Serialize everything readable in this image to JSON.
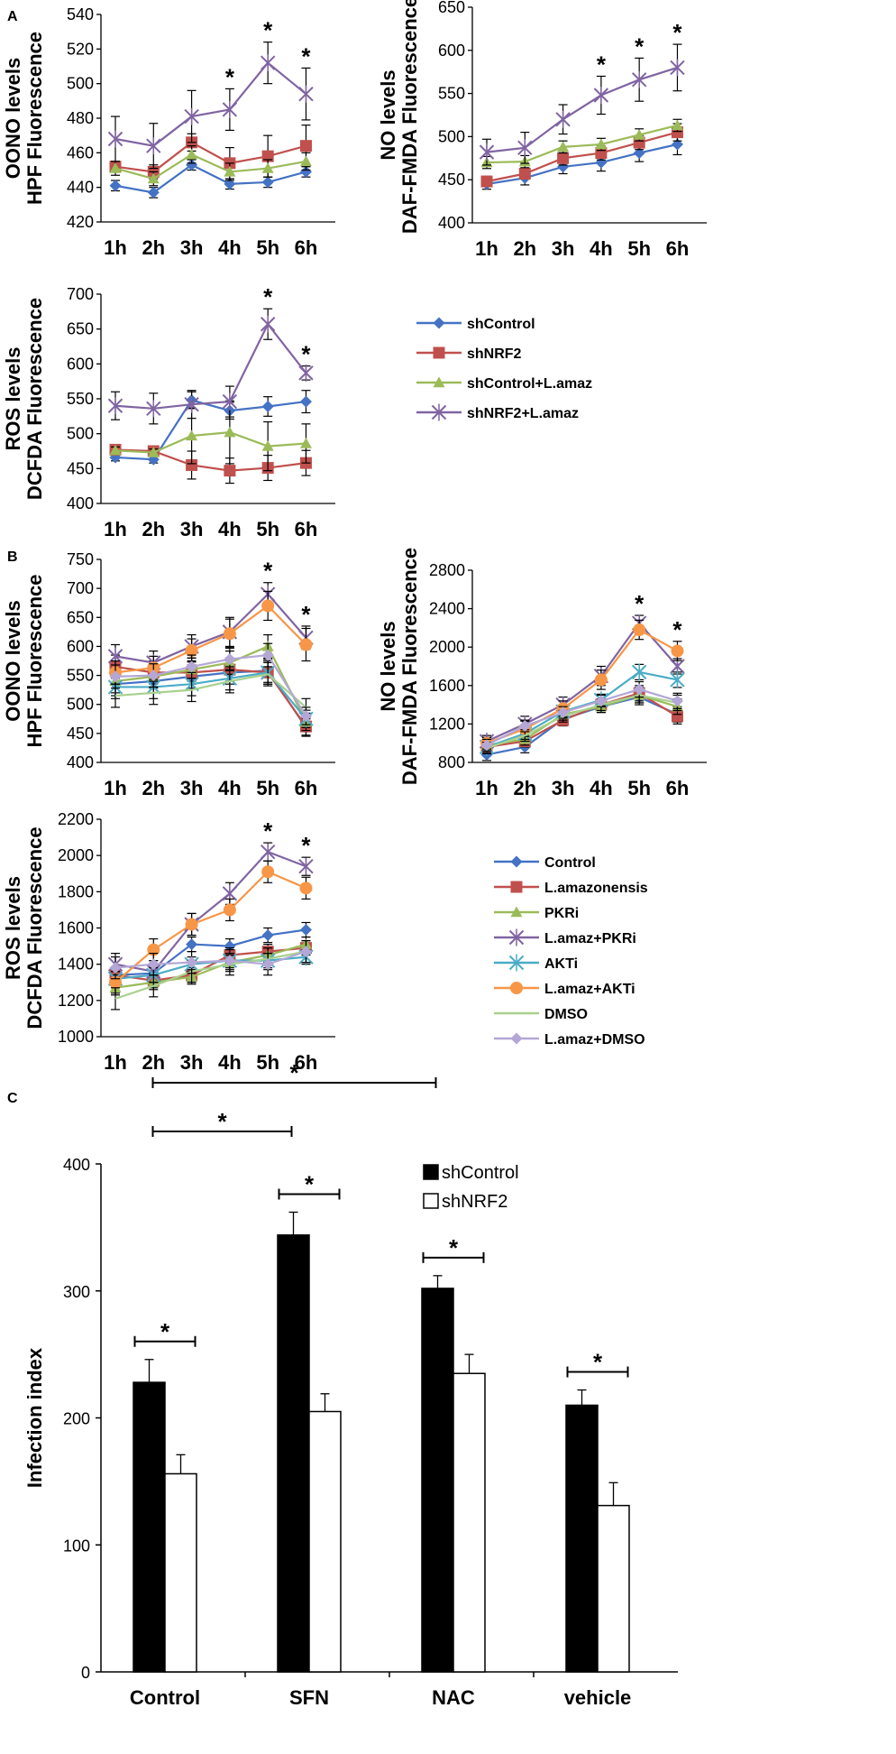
{
  "panels": [
    "A",
    "B",
    "C"
  ],
  "legend_a": [
    {
      "name": "shControl",
      "color": "#4472C4",
      "marker": "diamond"
    },
    {
      "name": "shNRF2",
      "color": "#C0504D",
      "marker": "square"
    },
    {
      "name": "shControl+L.amaz",
      "color": "#9BBB59",
      "marker": "triangle"
    },
    {
      "name": "shNRF2+L.amaz",
      "color": "#8064A2",
      "marker": "x"
    }
  ],
  "legend_b": [
    {
      "name": "Control",
      "color": "#4472C4",
      "marker": "diamond"
    },
    {
      "name": "L.amazonensis",
      "color": "#C0504D",
      "marker": "square"
    },
    {
      "name": "PKRi",
      "color": "#9BBB59",
      "marker": "triangle"
    },
    {
      "name": "L.amaz+PKRi",
      "color": "#8064A2",
      "marker": "x"
    },
    {
      "name": "AKTi",
      "color": "#4BACC6",
      "marker": "x"
    },
    {
      "name": "L.amaz+AKTi",
      "color": "#F79646",
      "marker": "circle"
    },
    {
      "name": "DMSO",
      "color": "#A9D18E",
      "marker": "none"
    },
    {
      "name": "L.amaz+DMSO",
      "color": "#B4A7D6",
      "marker": "diamond"
    }
  ],
  "legend_c": [
    {
      "name": "shControl",
      "fill": "#000000"
    },
    {
      "name": "shNRF2",
      "fill": "#ffffff"
    }
  ],
  "chart_data": [
    {
      "id": "A1",
      "panel": "A",
      "type": "line",
      "ylabel_lines": [
        "OONO levels",
        "HPF Fluorescence"
      ],
      "categories": [
        "1h",
        "2h",
        "3h",
        "4h",
        "5h",
        "6h"
      ],
      "ylim": [
        420,
        540
      ],
      "yticks": [
        420,
        440,
        460,
        480,
        500,
        520,
        540
      ],
      "series": [
        {
          "name": "shControl",
          "values": [
            441,
            437,
            453,
            442,
            443,
            449
          ],
          "err": [
            3,
            3,
            3,
            3,
            3,
            3
          ]
        },
        {
          "name": "shNRF2",
          "values": [
            452,
            449,
            466,
            454,
            458,
            464
          ],
          "err": [
            3,
            4,
            5,
            9,
            12,
            12
          ]
        },
        {
          "name": "shControl+L.amaz",
          "values": [
            451,
            445,
            459,
            449,
            451,
            455
          ],
          "err": [
            4,
            4,
            5,
            5,
            5,
            5
          ]
        },
        {
          "name": "shNRF2+L.amaz",
          "values": [
            468,
            464,
            481,
            485,
            512,
            494
          ],
          "err": [
            13,
            13,
            15,
            12,
            12,
            15
          ]
        }
      ],
      "stars": [
        "",
        "",
        "",
        "*",
        "*",
        "*"
      ]
    },
    {
      "id": "A2",
      "panel": "A",
      "type": "line",
      "ylabel_lines": [
        "NO levels",
        "DAF-FMDA Fluorescence"
      ],
      "categories": [
        "1h",
        "2h",
        "3h",
        "4h",
        "5h",
        "6h"
      ],
      "ylim": [
        400,
        650
      ],
      "yticks": [
        400,
        450,
        500,
        550,
        600,
        650
      ],
      "series": [
        {
          "name": "shControl",
          "values": [
            445,
            452,
            465,
            470,
            481,
            491
          ],
          "err": [
            6,
            8,
            8,
            10,
            10,
            12
          ]
        },
        {
          "name": "shNRF2",
          "values": [
            448,
            457,
            475,
            481,
            493,
            505
          ],
          "err": [
            6,
            6,
            8,
            8,
            8,
            10
          ]
        },
        {
          "name": "shControl+L.amaz",
          "values": [
            470,
            471,
            488,
            491,
            502,
            513
          ],
          "err": [
            7,
            7,
            7,
            7,
            7,
            7
          ]
        },
        {
          "name": "shNRF2+L.amaz",
          "values": [
            482,
            487,
            520,
            548,
            566,
            580
          ],
          "err": [
            15,
            18,
            17,
            22,
            25,
            27
          ]
        }
      ],
      "stars": [
        "",
        "",
        "",
        "*",
        "*",
        "*"
      ]
    },
    {
      "id": "A3",
      "panel": "A",
      "type": "line",
      "ylabel_lines": [
        "ROS levels",
        "DCFDA Fluorescence"
      ],
      "categories": [
        "1h",
        "2h",
        "3h",
        "4h",
        "5h",
        "6h"
      ],
      "ylim": [
        400,
        700
      ],
      "yticks": [
        400,
        450,
        500,
        550,
        600,
        650,
        700
      ],
      "series": [
        {
          "name": "shControl",
          "values": [
            466,
            463,
            548,
            533,
            539,
            546
          ],
          "err": [
            5,
            5,
            12,
            12,
            14,
            16
          ]
        },
        {
          "name": "shNRF2",
          "values": [
            477,
            475,
            455,
            447,
            451,
            458
          ],
          "err": [
            5,
            5,
            20,
            18,
            18,
            18
          ]
        },
        {
          "name": "shControl+L.amaz",
          "values": [
            476,
            473,
            497,
            502,
            482,
            486
          ],
          "err": [
            5,
            5,
            40,
            45,
            35,
            28
          ]
        },
        {
          "name": "shNRF2+L.amaz",
          "values": [
            540,
            536,
            542,
            546,
            657,
            587
          ],
          "err": [
            20,
            22,
            20,
            22,
            22,
            10
          ]
        }
      ],
      "stars": [
        "",
        "",
        "",
        "",
        "*",
        "*"
      ]
    },
    {
      "id": "B1",
      "panel": "B",
      "type": "line",
      "ylabel_lines": [
        "OONO levels",
        "HPF Fluorescence"
      ],
      "categories": [
        "1h",
        "2h",
        "3h",
        "4h",
        "5h",
        "6h"
      ],
      "ylim": [
        400,
        750
      ],
      "yticks": [
        400,
        450,
        500,
        550,
        600,
        650,
        700,
        750
      ],
      "series": [
        {
          "name": "Control",
          "values": [
            535,
            540,
            548,
            555,
            558,
            460
          ],
          "err": [
            20,
            20,
            20,
            20,
            20,
            15
          ]
        },
        {
          "name": "L.amazonensis",
          "values": [
            565,
            555,
            555,
            560,
            555,
            462
          ],
          "err": [
            20,
            20,
            20,
            20,
            20,
            15
          ]
        },
        {
          "name": "PKRi",
          "values": [
            540,
            548,
            560,
            572,
            600,
            470
          ],
          "err": [
            20,
            20,
            20,
            20,
            20,
            15
          ]
        },
        {
          "name": "L.amaz+PKRi",
          "values": [
            583,
            572,
            600,
            625,
            690,
            615
          ],
          "err": [
            20,
            20,
            20,
            25,
            20,
            20
          ]
        },
        {
          "name": "AKTi",
          "values": [
            530,
            530,
            535,
            545,
            555,
            475
          ],
          "err": [
            20,
            20,
            20,
            20,
            20,
            15
          ]
        },
        {
          "name": "L.amaz+AKTi",
          "values": [
            555,
            563,
            593,
            622,
            670,
            603
          ],
          "err": [
            20,
            20,
            20,
            25,
            25,
            28
          ]
        },
        {
          "name": "DMSO",
          "values": [
            515,
            520,
            525,
            540,
            552,
            495
          ],
          "err": [
            20,
            20,
            20,
            20,
            20,
            15
          ]
        },
        {
          "name": "L.amaz+DMSO",
          "values": [
            548,
            550,
            565,
            578,
            585,
            480
          ],
          "err": [
            20,
            20,
            20,
            20,
            20,
            15
          ]
        }
      ],
      "stars": [
        "",
        "",
        "",
        "",
        "*",
        "*"
      ]
    },
    {
      "id": "B2",
      "panel": "B",
      "type": "line",
      "ylabel_lines": [
        "NO levels",
        "DAF-FMDA Fluorescence"
      ],
      "categories": [
        "1h",
        "2h",
        "3h",
        "4h",
        "5h",
        "6h"
      ],
      "ylim": [
        800,
        2800
      ],
      "yticks": [
        800,
        1200,
        1600,
        2000,
        2400,
        2800
      ],
      "series": [
        {
          "name": "Control",
          "values": [
            880,
            960,
            1250,
            1380,
            1480,
            1300
          ],
          "err": [
            60,
            60,
            60,
            60,
            80,
            80
          ]
        },
        {
          "name": "L.amazonensis",
          "values": [
            960,
            1020,
            1240,
            1400,
            1520,
            1280
          ],
          "err": [
            60,
            60,
            60,
            60,
            80,
            80
          ]
        },
        {
          "name": "PKRi",
          "values": [
            980,
            1040,
            1300,
            1380,
            1500,
            1380
          ],
          "err": [
            60,
            60,
            60,
            60,
            80,
            80
          ]
        },
        {
          "name": "L.amaz+PKRi",
          "values": [
            1020,
            1200,
            1400,
            1700,
            2250,
            1800
          ],
          "err": [
            60,
            80,
            80,
            100,
            80,
            80
          ]
        },
        {
          "name": "AKTi",
          "values": [
            960,
            1100,
            1330,
            1450,
            1740,
            1660
          ],
          "err": [
            60,
            60,
            60,
            60,
            80,
            80
          ]
        },
        {
          "name": "L.amaz+AKTi",
          "values": [
            1000,
            1150,
            1360,
            1660,
            2180,
            1960
          ],
          "err": [
            60,
            80,
            80,
            100,
            100,
            100
          ]
        },
        {
          "name": "DMSO",
          "values": [
            950,
            1080,
            1280,
            1400,
            1500,
            1420
          ],
          "err": [
            60,
            60,
            60,
            60,
            80,
            80
          ]
        },
        {
          "name": "L.amaz+DMSO",
          "values": [
            980,
            1180,
            1320,
            1440,
            1560,
            1440
          ],
          "err": [
            60,
            60,
            60,
            60,
            80,
            80
          ]
        }
      ],
      "stars": [
        "",
        "",
        "",
        "",
        "*",
        "*"
      ]
    },
    {
      "id": "B3",
      "panel": "B",
      "type": "line",
      "ylabel_lines": [
        "ROS levels",
        "DCFDA Fluorescence"
      ],
      "categories": [
        "1h",
        "2h",
        "3h",
        "4h",
        "5h",
        "6h"
      ],
      "ylim": [
        1000,
        2200
      ],
      "yticks": [
        1000,
        1200,
        1400,
        1600,
        1800,
        2000,
        2200
      ],
      "series": [
        {
          "name": "Control",
          "values": [
            1340,
            1350,
            1510,
            1500,
            1560,
            1590
          ],
          "err": [
            40,
            40,
            40,
            40,
            40,
            40
          ]
        },
        {
          "name": "L.amazonensis",
          "values": [
            1340,
            1310,
            1340,
            1450,
            1470,
            1490
          ],
          "err": [
            40,
            40,
            40,
            40,
            40,
            40
          ]
        },
        {
          "name": "PKRi",
          "values": [
            1270,
            1300,
            1330,
            1410,
            1450,
            1510
          ],
          "err": [
            40,
            40,
            40,
            40,
            40,
            40
          ]
        },
        {
          "name": "L.amaz+PKRi",
          "values": [
            1400,
            1360,
            1620,
            1790,
            2020,
            1940
          ],
          "err": [
            60,
            60,
            60,
            60,
            50,
            50
          ]
        },
        {
          "name": "AKTi",
          "values": [
            1320,
            1340,
            1400,
            1420,
            1420,
            1440
          ],
          "err": [
            40,
            40,
            40,
            40,
            40,
            40
          ]
        },
        {
          "name": "L.amaz+AKTi",
          "values": [
            1300,
            1480,
            1620,
            1700,
            1910,
            1820
          ],
          "err": [
            60,
            60,
            60,
            60,
            60,
            60
          ]
        },
        {
          "name": "DMSO",
          "values": [
            1210,
            1280,
            1360,
            1400,
            1430,
            1470
          ],
          "err": [
            60,
            60,
            60,
            60,
            60,
            60
          ]
        },
        {
          "name": "L.amaz+DMSO",
          "values": [
            1380,
            1400,
            1410,
            1420,
            1400,
            1470
          ],
          "err": [
            60,
            60,
            60,
            60,
            60,
            60
          ]
        }
      ],
      "stars": [
        "",
        "",
        "",
        "",
        "*",
        "*"
      ]
    },
    {
      "id": "C",
      "panel": "C",
      "type": "bar",
      "ylabel": "Infection index",
      "categories": [
        "Control",
        "SFN",
        "NAC",
        "vehicle"
      ],
      "ylim": [
        0,
        400
      ],
      "yticks": [
        0,
        100,
        200,
        300,
        400
      ],
      "series": [
        {
          "name": "shControl",
          "values": [
            228,
            344,
            302,
            210
          ],
          "err": [
            18,
            18,
            10,
            12
          ]
        },
        {
          "name": "shNRF2",
          "values": [
            156,
            205,
            235,
            131
          ],
          "err": [
            15,
            14,
            15,
            18
          ]
        }
      ],
      "pair_star": "*",
      "brackets": [
        {
          "from": "Control",
          "to": "SFN",
          "label": "*"
        },
        {
          "from": "Control",
          "to": "NAC",
          "label": "*"
        }
      ]
    }
  ]
}
